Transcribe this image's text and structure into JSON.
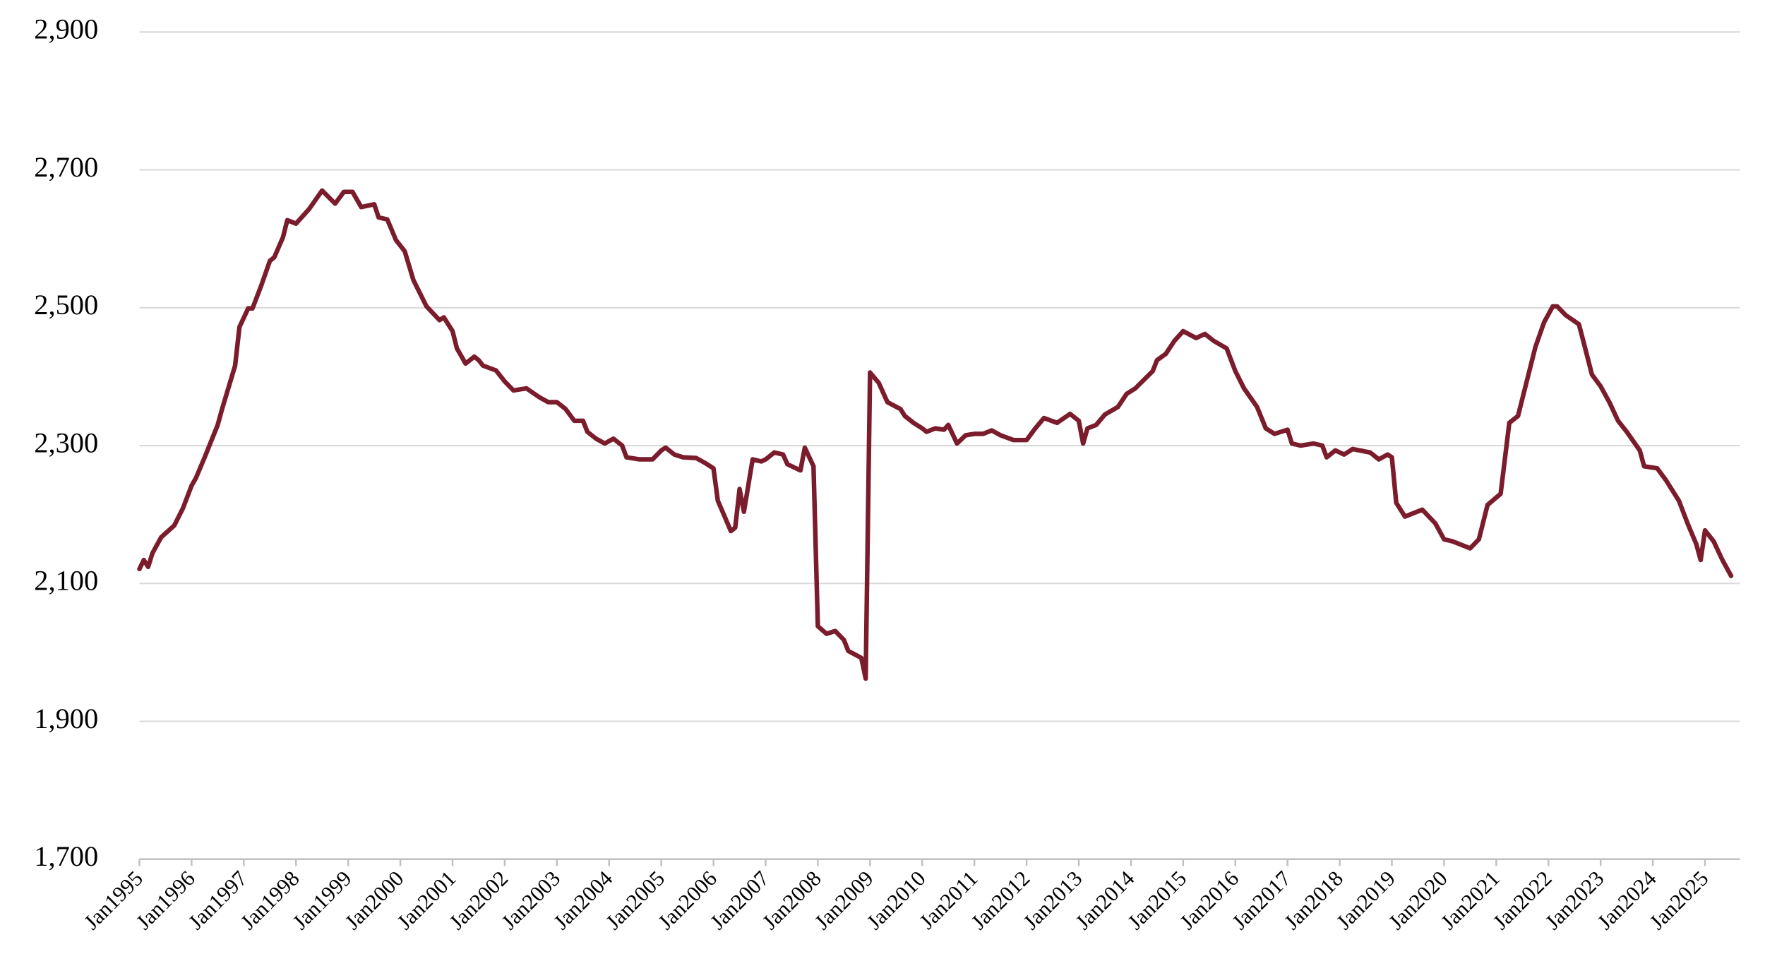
{
  "chart_data": {
    "type": "line",
    "grid": true,
    "xlim": [
      "1995-01",
      "2025-09"
    ],
    "ylim": [
      1700,
      2900
    ],
    "yticks": [
      {
        "value": 1700,
        "label": "1,700"
      },
      {
        "value": 1900,
        "label": "1,900"
      },
      {
        "value": 2100,
        "label": "2,100"
      },
      {
        "value": 2300,
        "label": "2,300"
      },
      {
        "value": 2500,
        "label": "2,500"
      },
      {
        "value": 2700,
        "label": "2,700"
      },
      {
        "value": 2900,
        "label": "2,900"
      }
    ],
    "xticks": [
      {
        "value": "1995-01",
        "label": "Jan1995"
      },
      {
        "value": "1996-01",
        "label": "Jan1996"
      },
      {
        "value": "1997-01",
        "label": "Jan1997"
      },
      {
        "value": "1998-01",
        "label": "Jan1998"
      },
      {
        "value": "1999-01",
        "label": "Jan1999"
      },
      {
        "value": "2000-01",
        "label": "Jan2000"
      },
      {
        "value": "2001-01",
        "label": "Jan2001"
      },
      {
        "value": "2002-01",
        "label": "Jan2002"
      },
      {
        "value": "2003-01",
        "label": "Jan2003"
      },
      {
        "value": "2004-01",
        "label": "Jan2004"
      },
      {
        "value": "2005-01",
        "label": "Jan2005"
      },
      {
        "value": "2006-01",
        "label": "Jan2006"
      },
      {
        "value": "2007-01",
        "label": "Jan2007"
      },
      {
        "value": "2008-01",
        "label": "Jan2008"
      },
      {
        "value": "2009-01",
        "label": "Jan2009"
      },
      {
        "value": "2010-01",
        "label": "Jan2010"
      },
      {
        "value": "2011-01",
        "label": "Jan2011"
      },
      {
        "value": "2012-01",
        "label": "Jan2012"
      },
      {
        "value": "2013-01",
        "label": "Jan2013"
      },
      {
        "value": "2014-01",
        "label": "Jan2014"
      },
      {
        "value": "2015-01",
        "label": "Jan2015"
      },
      {
        "value": "2016-01",
        "label": "Jan2016"
      },
      {
        "value": "2017-01",
        "label": "Jan2017"
      },
      {
        "value": "2018-01",
        "label": "Jan2018"
      },
      {
        "value": "2019-01",
        "label": "Jan2019"
      },
      {
        "value": "2020-01",
        "label": "Jan2020"
      },
      {
        "value": "2021-01",
        "label": "Jan2021"
      },
      {
        "value": "2022-01",
        "label": "Jan2022"
      },
      {
        "value": "2023-01",
        "label": "Jan2023"
      },
      {
        "value": "2024-01",
        "label": "Jan2024"
      },
      {
        "value": "2025-01",
        "label": "Jan2025"
      }
    ],
    "x": [
      "1995-01",
      "1995-02",
      "1995-03",
      "1995-04",
      "1995-06",
      "1995-09",
      "1995-11",
      "1996-01",
      "1996-02",
      "1996-04",
      "1996-07",
      "1996-08",
      "1996-11",
      "1996-12",
      "1997-02",
      "1997-03",
      "1997-05",
      "1997-07",
      "1997-08",
      "1997-10",
      "1997-11",
      "1998-01",
      "1998-04",
      "1998-07",
      "1998-10",
      "1998-12",
      "1999-02",
      "1999-04",
      "1999-07",
      "1999-08",
      "1999-10",
      "1999-12",
      "2000-02",
      "2000-04",
      "2000-07",
      "2000-10",
      "2000-11",
      "2001-01",
      "2001-02",
      "2001-04",
      "2001-06",
      "2001-07",
      "2001-08",
      "2001-11",
      "2002-01",
      "2002-03",
      "2002-06",
      "2002-09",
      "2002-11",
      "2003-01",
      "2003-03",
      "2003-05",
      "2003-07",
      "2003-08",
      "2003-10",
      "2003-12",
      "2004-02",
      "2004-04",
      "2004-05",
      "2004-08",
      "2004-11",
      "2005-01",
      "2005-02",
      "2005-04",
      "2005-06",
      "2005-09",
      "2005-11",
      "2006-01",
      "2006-02",
      "2006-05",
      "2006-06",
      "2006-07",
      "2006-08",
      "2006-10",
      "2006-12",
      "2007-01",
      "2007-03",
      "2007-05",
      "2007-06",
      "2007-09",
      "2007-10",
      "2007-12",
      "2008-01",
      "2008-03",
      "2008-05",
      "2008-07",
      "2008-08",
      "2008-11",
      "2008-12",
      "2009-01",
      "2009-03",
      "2009-05",
      "2009-08",
      "2009-09",
      "2009-11",
      "2010-01",
      "2010-02",
      "2010-04",
      "2010-06",
      "2010-07",
      "2010-09",
      "2010-11",
      "2011-01",
      "2011-03",
      "2011-05",
      "2011-07",
      "2011-10",
      "2012-01",
      "2012-03",
      "2012-05",
      "2012-08",
      "2012-11",
      "2013-01",
      "2013-02",
      "2013-03",
      "2013-05",
      "2013-07",
      "2013-10",
      "2013-12",
      "2014-02",
      "2014-06",
      "2014-07",
      "2014-09",
      "2014-11",
      "2015-01",
      "2015-04",
      "2015-06",
      "2015-08",
      "2015-11",
      "2016-01",
      "2016-03",
      "2016-06",
      "2016-08",
      "2016-10",
      "2017-01",
      "2017-02",
      "2017-04",
      "2017-07",
      "2017-09",
      "2017-10",
      "2017-12",
      "2018-02",
      "2018-04",
      "2018-08",
      "2018-10",
      "2018-12",
      "2019-01",
      "2019-02",
      "2019-04",
      "2019-08",
      "2019-11",
      "2020-01",
      "2020-03",
      "2020-07",
      "2020-09",
      "2020-11",
      "2021-02",
      "2021-04",
      "2021-06",
      "2021-08",
      "2021-10",
      "2021-12",
      "2022-02",
      "2022-03",
      "2022-05",
      "2022-08",
      "2022-09",
      "2022-11",
      "2023-01",
      "2023-03",
      "2023-05",
      "2023-07",
      "2023-10",
      "2023-11",
      "2024-02",
      "2024-04",
      "2024-07",
      "2024-09",
      "2024-11",
      "2024-12",
      "2025-01",
      "2025-03",
      "2025-05",
      "2025-07"
    ],
    "series": [
      {
        "color": "#7b1c2c",
        "values": [
          2121,
          2134,
          2124,
          2144,
          2167,
          2184,
          2209,
          2242,
          2253,
          2283,
          2330,
          2353,
          2416,
          2472,
          2499,
          2499,
          2532,
          2568,
          2573,
          2602,
          2627,
          2622,
          2643,
          2670,
          2651,
          2668,
          2668,
          2646,
          2650,
          2631,
          2628,
          2598,
          2582,
          2540,
          2502,
          2482,
          2486,
          2466,
          2441,
          2419,
          2429,
          2424,
          2416,
          2409,
          2393,
          2380,
          2383,
          2370,
          2363,
          2363,
          2353,
          2336,
          2336,
          2320,
          2310,
          2303,
          2310,
          2300,
          2283,
          2280,
          2280,
          2293,
          2297,
          2287,
          2283,
          2282,
          2275,
          2267,
          2220,
          2176,
          2181,
          2237,
          2204,
          2280,
          2277,
          2280,
          2290,
          2287,
          2273,
          2264,
          2297,
          2270,
          2038,
          2027,
          2031,
          2018,
          2002,
          1992,
          1962,
          2406,
          2391,
          2363,
          2353,
          2343,
          2333,
          2325,
          2320,
          2325,
          2323,
          2330,
          2303,
          2315,
          2317,
          2317,
          2322,
          2315,
          2308,
          2308,
          2325,
          2340,
          2333,
          2346,
          2336,
          2303,
          2325,
          2330,
          2345,
          2356,
          2375,
          2383,
          2408,
          2424,
          2433,
          2452,
          2466,
          2456,
          2462,
          2452,
          2441,
          2408,
          2383,
          2356,
          2325,
          2317,
          2323,
          2303,
          2300,
          2303,
          2300,
          2283,
          2293,
          2287,
          2295,
          2290,
          2280,
          2287,
          2283,
          2217,
          2197,
          2207,
          2187,
          2164,
          2161,
          2151,
          2164,
          2214,
          2230,
          2333,
          2343,
          2393,
          2443,
          2479,
          2502,
          2502,
          2489,
          2476,
          2452,
          2403,
          2386,
          2363,
          2336,
          2320,
          2293,
          2270,
          2267,
          2250,
          2220,
          2187,
          2157,
          2134,
          2177,
          2161,
          2134,
          2111
        ]
      }
    ]
  }
}
